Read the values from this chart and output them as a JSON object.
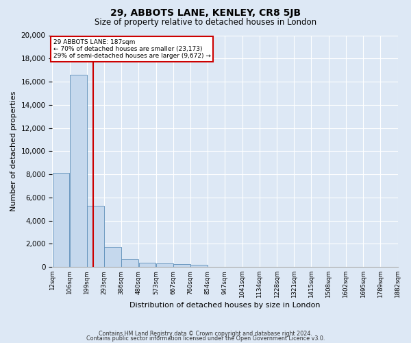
{
  "title": "29, ABBOTS LANE, KENLEY, CR8 5JB",
  "subtitle": "Size of property relative to detached houses in London",
  "xlabel": "Distribution of detached houses by size in London",
  "ylabel": "Number of detached properties",
  "bar_color": "#c5d8ed",
  "bar_edge_color": "#5b8db8",
  "vline_color": "#cc0000",
  "annotation_title": "29 ABBOTS LANE: 187sqm",
  "annotation_line1": "← 70% of detached houses are smaller (23,173)",
  "annotation_line2": "29% of semi-detached houses are larger (9,672) →",
  "annotation_box_color": "#cc0000",
  "footer1": "Contains HM Land Registry data © Crown copyright and database right 2024.",
  "footer2": "Contains public sector information licensed under the Open Government Licence v3.0.",
  "bin_labels": [
    "12sqm",
    "106sqm",
    "199sqm",
    "293sqm",
    "386sqm",
    "480sqm",
    "573sqm",
    "667sqm",
    "760sqm",
    "854sqm",
    "947sqm",
    "1041sqm",
    "1134sqm",
    "1228sqm",
    "1321sqm",
    "1415sqm",
    "1508sqm",
    "1602sqm",
    "1695sqm",
    "1789sqm",
    "1882sqm"
  ],
  "bar_heights": [
    8100,
    16600,
    5300,
    1750,
    680,
    350,
    280,
    230,
    200,
    0,
    0,
    0,
    0,
    0,
    0,
    0,
    0,
    0,
    0,
    0
  ],
  "vline_bar_index": 1.88,
  "ylim": [
    0,
    20000
  ],
  "yticks": [
    0,
    2000,
    4000,
    6000,
    8000,
    10000,
    12000,
    14000,
    16000,
    18000,
    20000
  ],
  "bg_color": "#dde8f5",
  "plot_bg_color": "#dde8f5",
  "title_fontsize": 10,
  "subtitle_fontsize": 8.5
}
